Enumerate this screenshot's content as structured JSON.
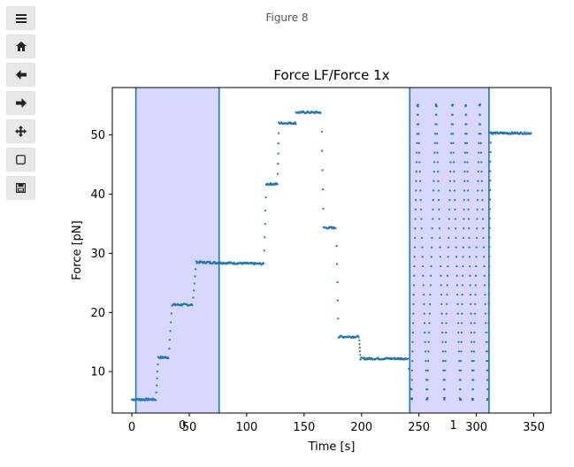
{
  "window": {
    "figure_title": "Figure 8"
  },
  "toolbar": {
    "buttons": [
      {
        "name": "menu",
        "icon": "menu-icon",
        "glyph": "≡"
      },
      {
        "name": "home",
        "icon": "home-icon",
        "glyph": "⌂"
      },
      {
        "name": "back",
        "icon": "back-arrow-icon",
        "glyph": "←"
      },
      {
        "name": "forward",
        "icon": "forward-arrow-icon",
        "glyph": "→"
      },
      {
        "name": "pan",
        "icon": "pan-move-icon",
        "glyph": "✥"
      },
      {
        "name": "zoom",
        "icon": "zoom-rect-icon",
        "glyph": "▢"
      },
      {
        "name": "save",
        "icon": "save-icon",
        "glyph": "💾"
      }
    ]
  },
  "chart_data": {
    "type": "scatter",
    "title": "Force LF/Force 1x",
    "xlabel": "Time [s]",
    "ylabel": "Force [pN]",
    "xlim": [
      -17,
      365
    ],
    "ylim": [
      3,
      58
    ],
    "xticks": [
      0,
      50,
      100,
      150,
      200,
      250,
      300,
      350
    ],
    "yticks": [
      10,
      20,
      30,
      40,
      50
    ],
    "marker_color": "#1f77b4",
    "span_fill": "#d8d8ff",
    "spans": [
      {
        "x0": 3.5,
        "x1": 76
      },
      {
        "x0": 242,
        "x1": 311
      }
    ],
    "span_labels": [
      {
        "x": 44,
        "text": "0"
      },
      {
        "x": 280,
        "text": "1"
      }
    ],
    "plateaus": [
      {
        "x0": 0,
        "x1": 21,
        "y": 5.3
      },
      {
        "x0": 23,
        "x1": 32,
        "y": 12.4
      },
      {
        "x0": 35,
        "x1": 53,
        "y": 21.3
      },
      {
        "x0": 56,
        "x1": 115,
        "y": 28.5,
        "y_end": 28.2
      },
      {
        "x0": 117,
        "x1": 127,
        "y": 41.7
      },
      {
        "x0": 128,
        "x1": 143,
        "y": 52.0
      },
      {
        "x0": 143,
        "x1": 165,
        "y": 53.8
      },
      {
        "x0": 167,
        "x1": 178,
        "y": 34.3
      },
      {
        "x0": 180,
        "x1": 198,
        "y": 15.9
      },
      {
        "x0": 199,
        "x1": 240,
        "y": 12.2
      },
      {
        "x0": 313,
        "x1": 348,
        "y": 50.3
      }
    ],
    "oscillation": {
      "x_start": 240,
      "x_end": 311,
      "y_low": 5.4,
      "y_high": 55.0,
      "peaks_x": [
        249,
        265,
        279,
        291,
        303
      ],
      "troughs_x": [
        257,
        272,
        286,
        297,
        310
      ]
    }
  }
}
